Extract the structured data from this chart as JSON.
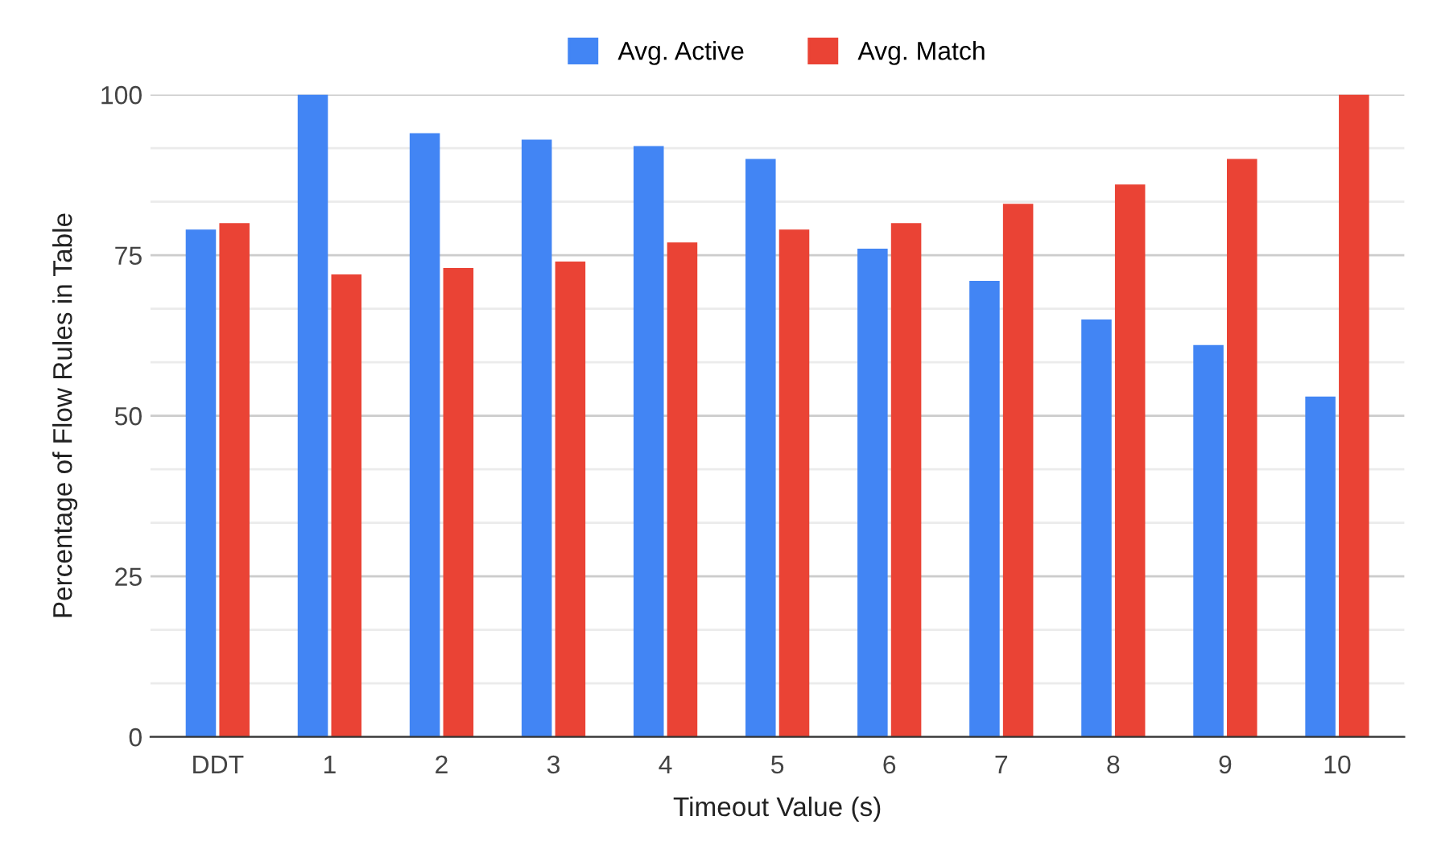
{
  "chart_data": {
    "type": "bar",
    "xlabel": "Timeout Value (s)",
    "ylabel": "Percentage of Flow Rules in Table",
    "categories": [
      "DDT",
      "1",
      "2",
      "3",
      "4",
      "5",
      "6",
      "7",
      "8",
      "9",
      "10"
    ],
    "series": [
      {
        "name": "Avg. Active",
        "color": "#4285f4",
        "values": [
          79,
          100,
          94,
          93,
          92,
          90,
          76,
          71,
          65,
          61,
          53
        ]
      },
      {
        "name": "Avg. Match",
        "color": "#ea4335",
        "values": [
          80,
          72,
          73,
          74,
          77,
          79,
          80,
          83,
          86,
          90,
          100
        ]
      }
    ],
    "ylim": [
      0,
      100
    ],
    "yticks": [
      0,
      25,
      50,
      75,
      100
    ],
    "grid": "y",
    "legend": "top"
  }
}
